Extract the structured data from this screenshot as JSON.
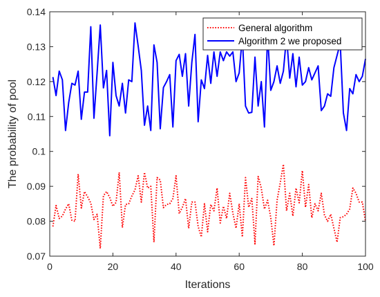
{
  "chart_data": {
    "type": "line",
    "title": "",
    "xlabel": "Iterations",
    "ylabel": "The probability of pool",
    "xlim": [
      0,
      100
    ],
    "ylim": [
      0.07,
      0.14
    ],
    "xticks": [
      0,
      20,
      40,
      60,
      80,
      100
    ],
    "xtick_labels": [
      "0",
      "20",
      "40",
      "60",
      "80",
      "100"
    ],
    "yticks": [
      0.07,
      0.08,
      0.09,
      0.1,
      0.11,
      0.12,
      0.13,
      0.14
    ],
    "ytick_labels": [
      "0.07",
      "0.08",
      "0.09",
      "0.1",
      "0.11",
      "0.12",
      "0.13",
      "0.14"
    ],
    "grid": false,
    "legend_position": "top-right",
    "x": [
      1,
      2,
      3,
      4,
      5,
      6,
      7,
      8,
      9,
      10,
      11,
      12,
      13,
      14,
      15,
      16,
      17,
      18,
      19,
      20,
      21,
      22,
      23,
      24,
      25,
      26,
      27,
      28,
      29,
      30,
      31,
      32,
      33,
      34,
      35,
      36,
      37,
      38,
      39,
      40,
      41,
      42,
      43,
      44,
      45,
      46,
      47,
      48,
      49,
      50,
      51,
      52,
      53,
      54,
      55,
      56,
      57,
      58,
      59,
      60,
      61,
      62,
      63,
      64,
      65,
      66,
      67,
      68,
      69,
      70,
      71,
      72,
      73,
      74,
      75,
      76,
      77,
      78,
      79,
      80,
      81,
      82,
      83,
      84,
      85,
      86,
      87,
      88,
      89,
      90,
      91,
      92,
      93,
      94,
      95,
      96,
      97,
      98,
      99,
      100
    ],
    "series": [
      {
        "name": "General algorithm",
        "color": "#ff0000",
        "style": "dotted",
        "values": [
          0.0785,
          0.0845,
          0.0808,
          0.0815,
          0.0835,
          0.085,
          0.0803,
          0.08,
          0.0935,
          0.0838,
          0.0885,
          0.087,
          0.0852,
          0.0805,
          0.082,
          0.0722,
          0.0873,
          0.0885,
          0.0868,
          0.0843,
          0.0854,
          0.094,
          0.0782,
          0.0848,
          0.085,
          0.0872,
          0.089,
          0.093,
          0.0855,
          0.094,
          0.0895,
          0.09,
          0.074,
          0.0925,
          0.0918,
          0.0839,
          0.0848,
          0.085,
          0.0865,
          0.093,
          0.0822,
          0.084,
          0.0865,
          0.078,
          0.0855,
          0.0855,
          0.0785,
          0.0755,
          0.085,
          0.077,
          0.0848,
          0.083,
          0.0895,
          0.0795,
          0.0843,
          0.0808,
          0.088,
          0.0823,
          0.078,
          0.085,
          0.0755,
          0.0925,
          0.084,
          0.0865,
          0.0735,
          0.0928,
          0.0895,
          0.0835,
          0.086,
          0.081,
          0.073,
          0.086,
          0.091,
          0.0963,
          0.083,
          0.088,
          0.0815,
          0.0895,
          0.0853,
          0.0945,
          0.084,
          0.0905,
          0.081,
          0.085,
          0.083,
          0.088,
          0.0818,
          0.08,
          0.082,
          0.078,
          0.074,
          0.081,
          0.0813,
          0.082,
          0.0835,
          0.0895,
          0.088,
          0.0855,
          0.0855,
          0.08
        ]
      },
      {
        "name": "Algorithm 2 we proposed",
        "color": "#0000ff",
        "style": "solid",
        "values": [
          0.1213,
          0.116,
          0.123,
          0.1205,
          0.106,
          0.114,
          0.1195,
          0.119,
          0.123,
          0.1092,
          0.117,
          0.117,
          0.1357,
          0.1095,
          0.1225,
          0.1362,
          0.1182,
          0.1232,
          0.1045,
          0.1255,
          0.116,
          0.113,
          0.1195,
          0.111,
          0.1205,
          0.12,
          0.1368,
          0.1302,
          0.1232,
          0.1075,
          0.113,
          0.106,
          0.1305,
          0.1255,
          0.1065,
          0.1183,
          0.12,
          0.122,
          0.107,
          0.126,
          0.1278,
          0.1215,
          0.128,
          0.113,
          0.1255,
          0.1335,
          0.1085,
          0.1205,
          0.118,
          0.1275,
          0.1195,
          0.1285,
          0.1215,
          0.1285,
          0.126,
          0.1285,
          0.1273,
          0.1285,
          0.12,
          0.1225,
          0.133,
          0.113,
          0.111,
          0.1112,
          0.127,
          0.113,
          0.12,
          0.107,
          0.1335,
          0.1175,
          0.12,
          0.1245,
          0.1195,
          0.123,
          0.133,
          0.121,
          0.128,
          0.1185,
          0.127,
          0.119,
          0.12,
          0.124,
          0.1205,
          0.1225,
          0.1245,
          0.1117,
          0.113,
          0.1165,
          0.1158,
          0.124,
          0.1275,
          0.131,
          0.111,
          0.106,
          0.118,
          0.1165,
          0.122,
          0.12,
          0.1215,
          0.1265
        ]
      }
    ]
  }
}
